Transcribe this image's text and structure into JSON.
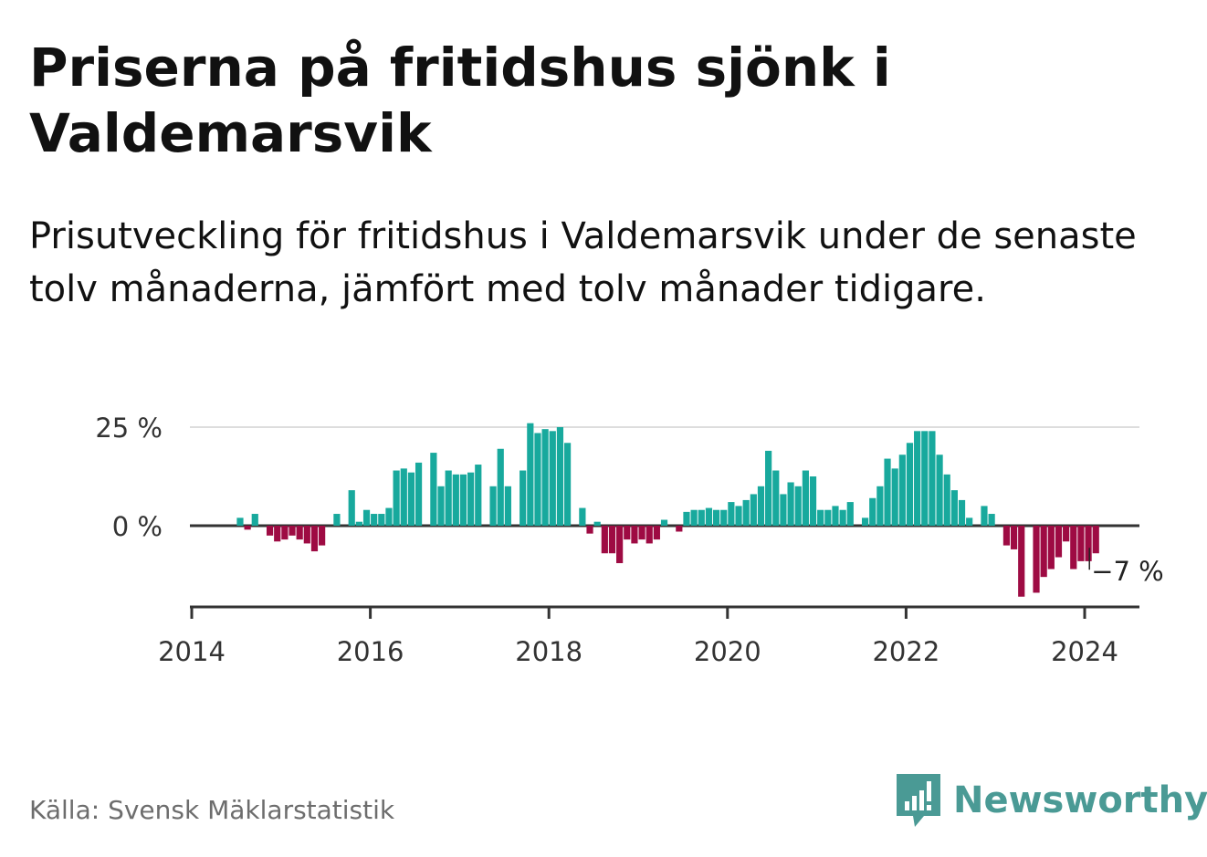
{
  "title": "Priserna på fritidshus sjönk i Valdemarsvik",
  "subtitle": "Prisutveckling för fritidshus i Valdemarsvik under de senaste tolv månaderna, jämfört med tolv månader tidigare.",
  "source": "Källa: Svensk Mäklarstatistik",
  "brand": {
    "name": "Newsworthy",
    "icon": "newsworthy-logo-icon"
  },
  "colors": {
    "positive": "#18a99d",
    "negative": "#9e0b43",
    "grid": "#dddddd",
    "axis": "#333333",
    "brand": "#4a9a95"
  },
  "chart_data": {
    "type": "bar",
    "unit": "%",
    "start": "2014-01",
    "x_ticks": [
      "2014",
      "2016",
      "2018",
      "2020",
      "2022",
      "2024"
    ],
    "y_ticks": [
      {
        "value": 25,
        "label": "25 %"
      },
      {
        "value": 0,
        "label": "0 %"
      }
    ],
    "ylim": [
      -20,
      25
    ],
    "annotation": {
      "label": "−7 %",
      "value": -7
    },
    "values": [
      null,
      null,
      null,
      null,
      null,
      null,
      2,
      -1,
      3,
      0,
      -2.5,
      -4,
      -3.5,
      -2.5,
      -3.5,
      -4.5,
      -6.5,
      -5,
      0,
      3,
      0,
      9,
      1,
      4,
      3,
      3,
      4.5,
      14,
      14.5,
      13.5,
      16,
      0,
      18.5,
      10,
      14,
      13,
      13,
      13.5,
      15.5,
      0,
      10,
      19.5,
      10,
      0,
      14,
      26,
      23.5,
      24.5,
      24,
      25,
      21,
      0,
      4.5,
      -2,
      1,
      -7,
      -7,
      -9.5,
      -3.5,
      -4.5,
      -3.5,
      -4.5,
      -3.5,
      1.5,
      0,
      -1.5,
      3.5,
      4,
      4,
      4.5,
      4,
      4,
      6,
      5,
      6.5,
      8,
      10,
      19,
      14,
      8,
      11,
      10,
      14,
      12.5,
      4,
      4,
      5,
      4,
      6,
      0,
      2,
      7,
      10,
      17,
      14.5,
      18,
      21,
      24,
      24,
      24,
      18,
      13,
      9,
      6.5,
      2,
      0,
      5,
      3,
      0,
      -5,
      -6,
      -18,
      0,
      -17,
      -13,
      -11,
      -8,
      -4,
      -11,
      -9,
      -9,
      -7
    ]
  }
}
